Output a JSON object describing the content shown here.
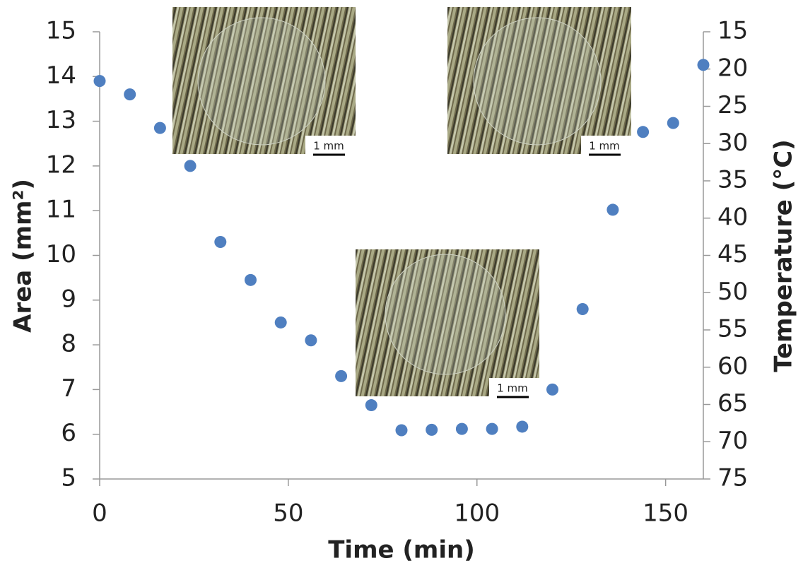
{
  "chart_data": {
    "type": "scatter",
    "x_label": "Time (min)",
    "y_label": "Area (mm²)",
    "y2_label": "Temperature (°C)",
    "x": [
      0,
      8,
      16,
      24,
      32,
      40,
      48,
      56,
      64,
      72,
      80,
      88,
      96,
      104,
      112,
      120,
      128,
      136,
      144,
      152,
      160
    ],
    "series": [
      {
        "color": "#4f7fc0",
        "values": [
          13.9,
          13.6,
          12.85,
          12.0,
          10.3,
          9.45,
          8.5,
          8.1,
          7.3,
          6.65,
          6.09,
          6.1,
          6.12,
          6.12,
          6.17,
          7.0,
          8.8,
          11.02,
          12.76,
          12.96,
          14.26
        ]
      }
    ],
    "xlim": [
      0,
      160
    ],
    "xticks": [
      0,
      50,
      100,
      150
    ],
    "ylim": [
      5,
      15
    ],
    "yticks": [
      5,
      6,
      7,
      8,
      9,
      10,
      11,
      12,
      13,
      14,
      15
    ],
    "y2lim": [
      15,
      75
    ],
    "y2_inverted": true,
    "y2ticks": [
      15,
      20,
      25,
      30,
      35,
      40,
      45,
      50,
      55,
      60,
      65,
      70,
      75
    ],
    "annotations": [
      "1 mm",
      "1 mm",
      "1 mm"
    ]
  }
}
